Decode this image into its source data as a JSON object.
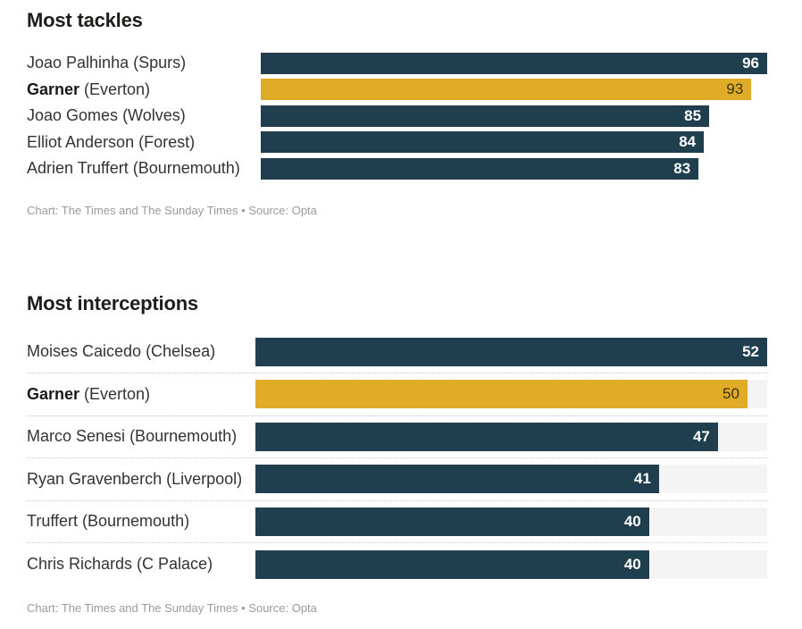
{
  "colors": {
    "bar": "#1f3e4e",
    "highlight_bar": "#e0ac28",
    "track": "#f4f4f4",
    "value_on_bar": "#ffffff",
    "value_on_highlight": "#3b3314",
    "label_text": "#333333",
    "title_text": "#1d1d1b",
    "credit_text": "#9b9b9b"
  },
  "chart_data": [
    {
      "type": "bar",
      "orientation": "horizontal",
      "title": "Most tackles",
      "categories": [
        "Joao Palhinha (Spurs)",
        "Garner (Everton)",
        "Joao Gomes (Wolves)",
        "Elliot Anderson (Forest)",
        "Adrien Truffert (Bournemouth)"
      ],
      "values": [
        96,
        93,
        85,
        84,
        83
      ],
      "highlighted_category": "Garner (Everton)",
      "xlim": [
        0,
        96
      ],
      "grid": false,
      "value_labels": "inside-end",
      "credit": "Chart: The Times and The Sunday Times • Source: Opta"
    },
    {
      "type": "bar",
      "orientation": "horizontal",
      "title": "Most interceptions",
      "categories": [
        "Moises Caicedo (Chelsea)",
        "Garner (Everton)",
        "Marco Senesi (Bournemouth)",
        "Ryan Gravenberch (Liverpool)",
        "Truffert (Bournemouth)",
        "Chris Richards (C Palace)"
      ],
      "values": [
        52,
        50,
        47,
        41,
        40,
        40
      ],
      "highlighted_category": "Garner (Everton)",
      "xlim": [
        0,
        52
      ],
      "grid": false,
      "value_labels": "inside-end",
      "credit": "Chart: The Times and The Sunday Times • Source: Opta"
    }
  ],
  "charts": [
    {
      "title": "Most tackles",
      "credit": "Chart: The Times and The Sunday Times • Source: Opta",
      "rows": [
        {
          "name": "Joao Palhinha",
          "team": " (Spurs)",
          "value": "96"
        },
        {
          "name": "Garner",
          "team": " (Everton)",
          "value": "93"
        },
        {
          "name": "Joao Gomes",
          "team": " (Wolves)",
          "value": "85"
        },
        {
          "name": "Elliot Anderson",
          "team": " (Forest)",
          "value": "84"
        },
        {
          "name": "Adrien Truffert",
          "team": " (Bournemouth)",
          "value": "83"
        }
      ]
    },
    {
      "title": "Most interceptions",
      "credit": "Chart: The Times and The Sunday Times • Source: Opta",
      "rows": [
        {
          "name": "Moises Caicedo",
          "team": " (Chelsea)",
          "value": "52"
        },
        {
          "name": "Garner",
          "team": " (Everton)",
          "value": "50"
        },
        {
          "name": "Marco Senesi",
          "team": " (Bournemouth)",
          "value": "47"
        },
        {
          "name": "Ryan Gravenberch",
          "team": " (Liverpool)",
          "value": "41"
        },
        {
          "name": "Truffert",
          "team": " (Bournemouth)",
          "value": "40"
        },
        {
          "name": "Chris Richards",
          "team": " (C Palace)",
          "value": "40"
        }
      ]
    }
  ]
}
